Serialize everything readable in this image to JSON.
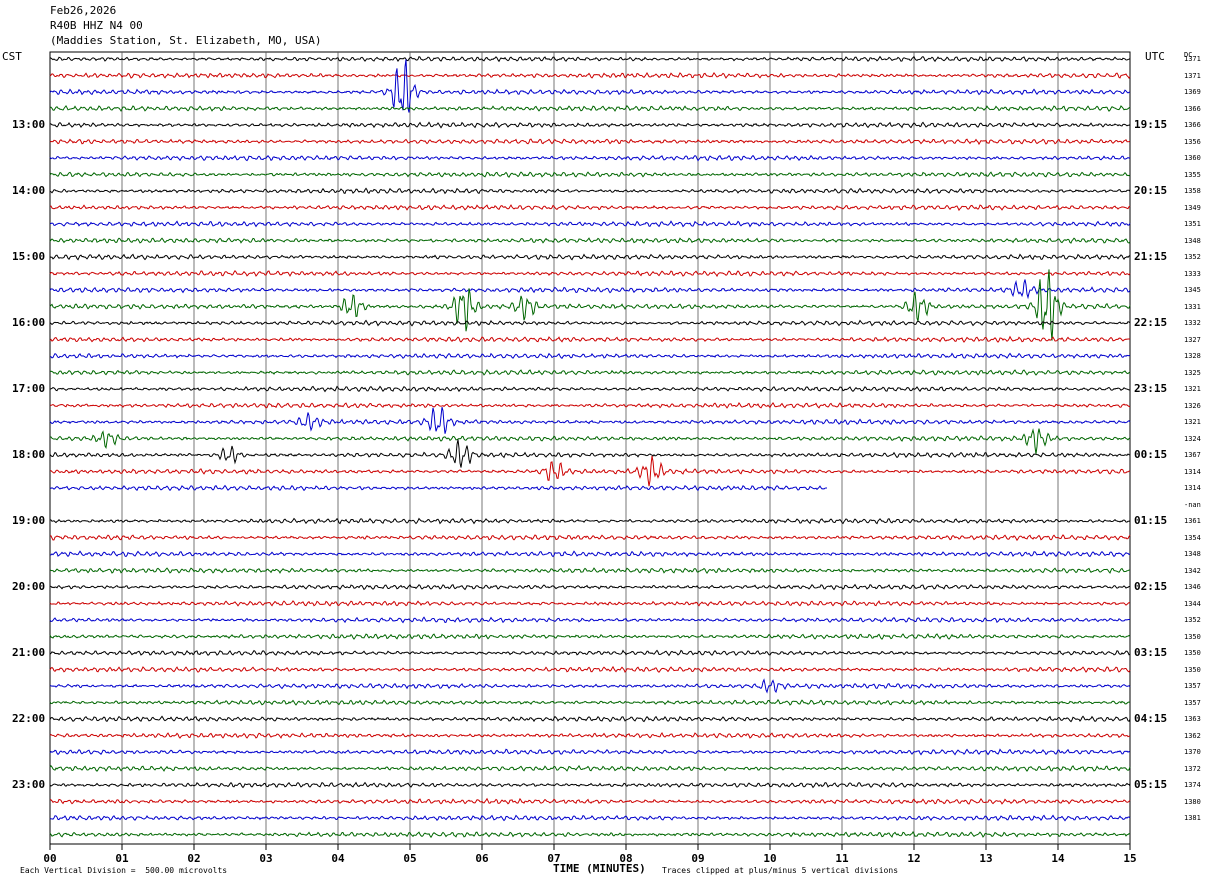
{
  "header": {
    "date": "Feb26,2026",
    "channel": "R40B HHZ N4 00",
    "station": "(Maddies Station, St. Elizabeth, MO, USA)"
  },
  "left_timezone": "CST",
  "right_timezone": "UTC",
  "dc_header": "DC",
  "left_hour_labels": [
    "13:00",
    "14:00",
    "15:00",
    "16:00",
    "17:00",
    "18:00",
    "19:00",
    "20:00",
    "21:00",
    "22:00",
    "23:00"
  ],
  "right_hour_labels": [
    "19:15",
    "20:15",
    "21:15",
    "22:15",
    "23:15",
    "00:15",
    "01:15",
    "02:15",
    "03:15",
    "04:15",
    "05:15"
  ],
  "dc_values": [
    "1371",
    "1371",
    "1369",
    "1366",
    "1366",
    "1356",
    "1360",
    "1355",
    "1358",
    "1349",
    "1351",
    "1348",
    "1352",
    "1333",
    "1345",
    "1331",
    "1332",
    "1327",
    "1328",
    "1325",
    "1321",
    "1326",
    "1321",
    "1324",
    "1367",
    "1314",
    "1314",
    "-nan",
    "1361",
    "1354",
    "1348",
    "1342",
    "1346",
    "1344",
    "1352",
    "1350",
    "1350",
    "1350",
    "1357",
    "1357",
    "1363",
    "1362",
    "1370",
    "1372",
    "1374",
    "1380",
    "1381"
  ],
  "footer": {
    "scale": "Each Vertical Division =  500.00 microvolts",
    "clip": "Traces clipped at plus/minus 5 vertical divisions"
  },
  "chart_data": {
    "type": "line",
    "title": "R40B HHZ N4 00",
    "xlabel": "TIME (MINUTES)",
    "ylabel": "",
    "x_ticks": [
      "00",
      "01",
      "02",
      "03",
      "04",
      "05",
      "06",
      "07",
      "08",
      "09",
      "10",
      "11",
      "12",
      "13",
      "14",
      "15"
    ],
    "xlim": [
      0,
      15
    ],
    "trace_count": 48,
    "trace_interval_minutes": 15,
    "trace_colors": [
      "#000000",
      "#cc0000",
      "#0000cc",
      "#006600"
    ],
    "missing_trace_index": 27,
    "partial_trace": {
      "index": 26,
      "end_minute": 10.8
    },
    "events": [
      {
        "trace": 2,
        "minute": 4.9,
        "amplitude": 2.2
      },
      {
        "trace": 15,
        "minute": 4.2,
        "amplitude": 0.8
      },
      {
        "trace": 15,
        "minute": 5.75,
        "amplitude": 1.6
      },
      {
        "trace": 15,
        "minute": 6.6,
        "amplitude": 0.8
      },
      {
        "trace": 15,
        "minute": 12.05,
        "amplitude": 1.0
      },
      {
        "trace": 15,
        "minute": 13.85,
        "amplitude": 2.6
      },
      {
        "trace": 14,
        "minute": 13.5,
        "amplitude": 0.6
      },
      {
        "trace": 22,
        "minute": 5.4,
        "amplitude": 1.0
      },
      {
        "trace": 22,
        "minute": 3.6,
        "amplitude": 0.5
      },
      {
        "trace": 23,
        "minute": 13.7,
        "amplitude": 0.8
      },
      {
        "trace": 23,
        "minute": 0.8,
        "amplitude": 0.5
      },
      {
        "trace": 24,
        "minute": 2.5,
        "amplitude": 0.6
      },
      {
        "trace": 24,
        "minute": 5.7,
        "amplitude": 0.9
      },
      {
        "trace": 25,
        "minute": 7.0,
        "amplitude": 0.7
      },
      {
        "trace": 25,
        "minute": 8.35,
        "amplitude": 0.9
      },
      {
        "trace": 38,
        "minute": 10.0,
        "amplitude": 0.4
      }
    ],
    "grid": true
  }
}
